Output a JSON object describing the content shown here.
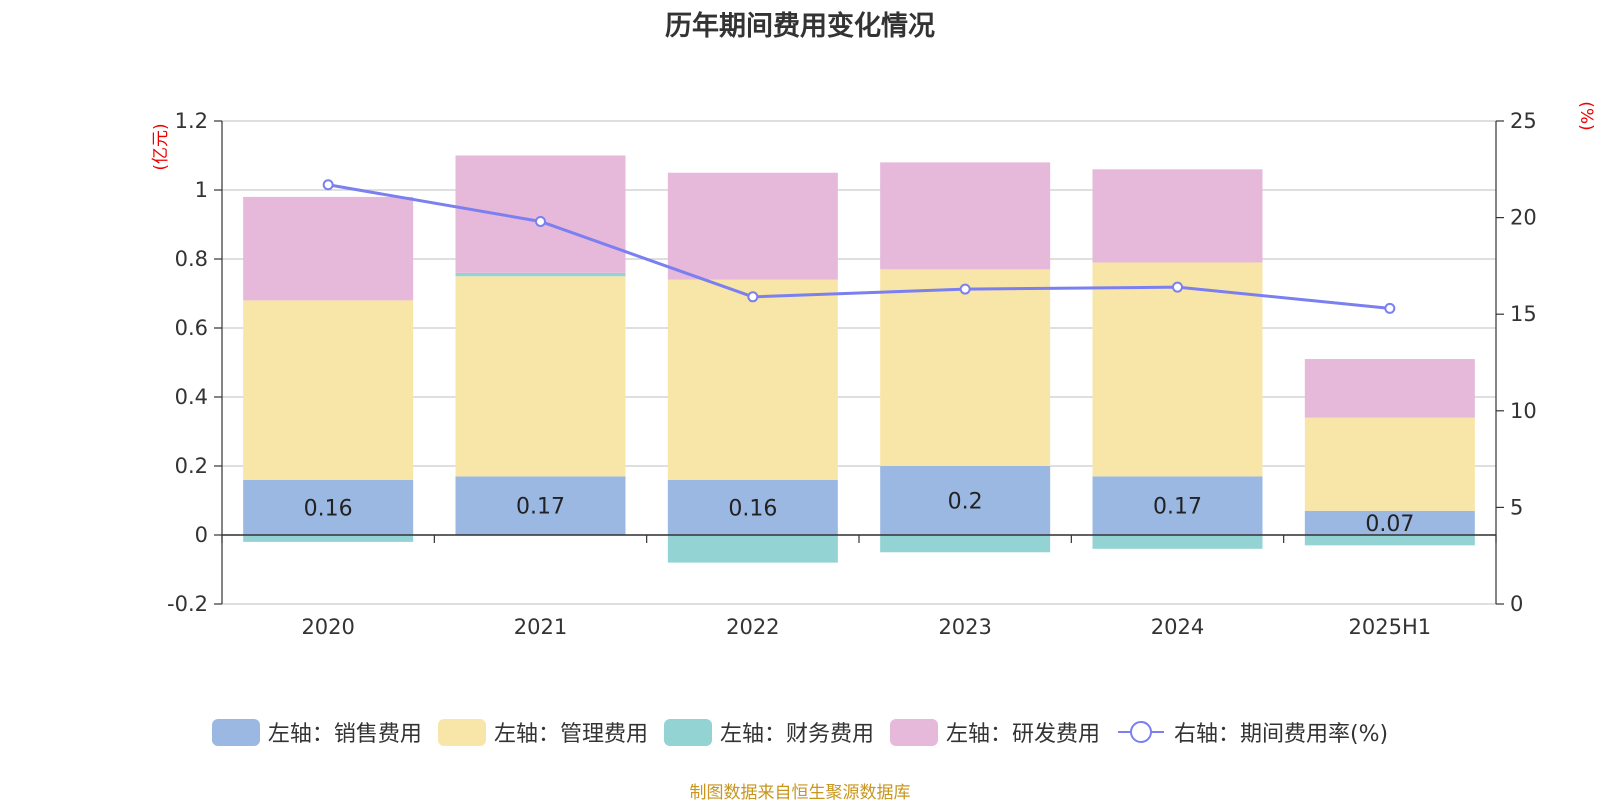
{
  "chart_data": {
    "type": "bar",
    "title": "历年期间费用变化情况",
    "categories": [
      "2020",
      "2021",
      "2022",
      "2023",
      "2024",
      "2025H1"
    ],
    "series": [
      {
        "name": "左轴：销售费用",
        "values": [
          0.16,
          0.17,
          0.16,
          0.2,
          0.17,
          0.07
        ],
        "color": "#9bb8e2",
        "axis": "left",
        "type": "bar",
        "labels": [
          "0.16",
          "0.17",
          "0.16",
          "0.2",
          "0.17",
          "0.07"
        ]
      },
      {
        "name": "左轴：管理费用",
        "values": [
          0.52,
          0.58,
          0.58,
          0.57,
          0.62,
          0.27
        ],
        "color": "#f8e6a8",
        "axis": "left",
        "type": "bar"
      },
      {
        "name": "左轴：财务费用",
        "values": [
          -0.02,
          0.01,
          -0.08,
          -0.05,
          -0.04,
          -0.03
        ],
        "color": "#93d3d4",
        "axis": "left",
        "type": "bar"
      },
      {
        "name": "左轴：研发费用",
        "values": [
          0.3,
          0.34,
          0.31,
          0.31,
          0.27,
          0.17
        ],
        "color": "#e6b8d9",
        "axis": "left",
        "type": "bar"
      },
      {
        "name": "右轴：期间费用率(%)",
        "values": [
          21.7,
          19.8,
          15.9,
          16.3,
          16.4,
          15.3
        ],
        "color": "#7b7ff0",
        "axis": "right",
        "type": "line"
      }
    ],
    "y_left": {
      "unit": "(亿元)",
      "min": -0.2,
      "max": 1.2,
      "ticks": [
        -0.2,
        0,
        0.2,
        0.4,
        0.6,
        0.8,
        1,
        1.2
      ],
      "tick_labels": [
        "-0.2",
        "0",
        "0.2",
        "0.4",
        "0.6",
        "0.8",
        "1",
        "1.2"
      ]
    },
    "y_right": {
      "unit": "(%)",
      "min": 0,
      "max": 25,
      "ticks": [
        0,
        5,
        10,
        15,
        20,
        25
      ],
      "tick_labels": [
        "0",
        "5",
        "10",
        "15",
        "20",
        "25"
      ]
    },
    "grid": true,
    "legend_position": "bottom"
  },
  "source": "制图数据来自恒生聚源数据库"
}
